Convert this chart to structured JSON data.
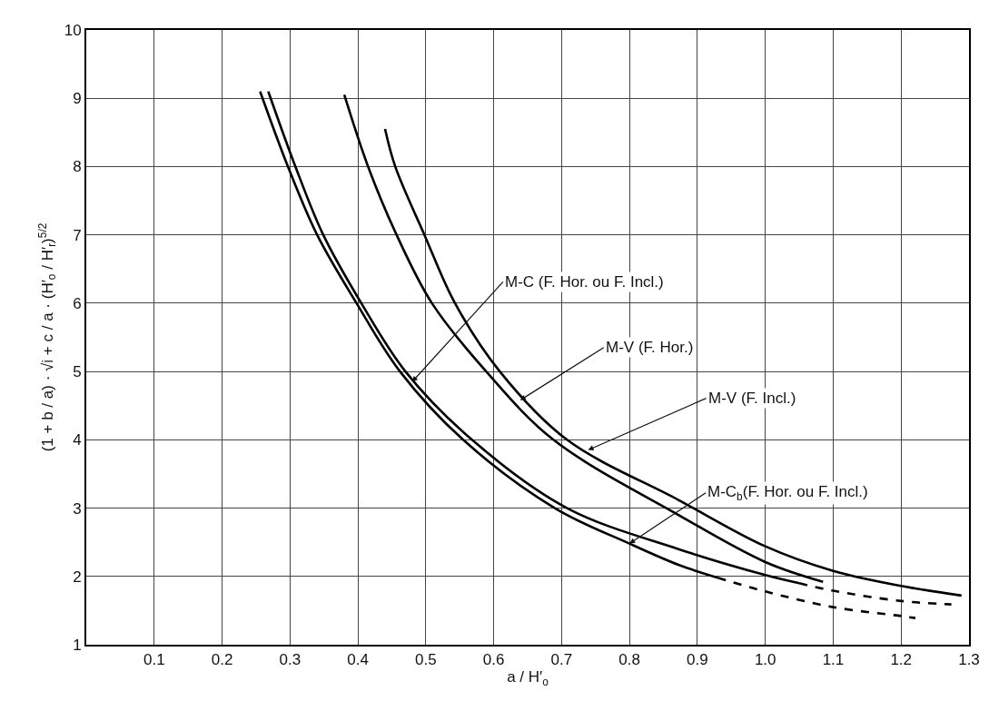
{
  "chart_data": {
    "type": "line",
    "xlabel": "a / H′$_{o}$",
    "ylabel": "(1 + b / a) · √i + c / a · (H′$_{o}$ / H′$_{r}$)$^{5/2}$",
    "xlim": [
      0,
      1.3
    ],
    "xticks": [
      0.1,
      0.2,
      0.3,
      0.4,
      0.5,
      0.6,
      0.7,
      0.8,
      0.9,
      {
        "value": 1,
        "label": "1.0"
      },
      1.1,
      1.2,
      1.3
    ],
    "ylim": [
      1,
      10
    ],
    "yticks": [
      1,
      2,
      3,
      4,
      5,
      6,
      7,
      8,
      9,
      10
    ],
    "grid": true,
    "marker": "none",
    "series": [
      {
        "color": "#000000",
        "line_style": "solid",
        "x": [
          0.256,
          0.297,
          0.34,
          0.398,
          0.462,
          0.555,
          0.69,
          0.8,
          0.872,
          0.93
        ],
        "values": [
          9.1,
          8,
          7,
          6,
          5,
          4,
          3,
          2.48,
          2.17,
          1.98
        ]
      },
      {
        "color": "#000000",
        "line_style": "dashed",
        "x": [
          0.93,
          1.0,
          1.1,
          1.2,
          1.221
        ],
        "values": [
          1.98,
          1.78,
          1.55,
          1.42,
          1.39
        ]
      },
      {
        "color": "#000000",
        "line_style": "solid",
        "x": [
          0.268,
          0.308,
          0.349,
          0.405,
          0.47,
          0.568,
          0.708,
          0.872,
          1.0,
          1.05
        ],
        "values": [
          9.1,
          8,
          7,
          6,
          5,
          4,
          3,
          2.4,
          2.02,
          1.9
        ]
      },
      {
        "color": "#000000",
        "line_style": "dashed",
        "x": [
          1.05,
          1.1,
          1.2,
          1.274
        ],
        "values": [
          1.9,
          1.79,
          1.64,
          1.59
        ]
      },
      {
        "color": "#000000",
        "line_style": "solid",
        "x": [
          0.38,
          0.415,
          0.457,
          0.509,
          0.589,
          0.688,
          0.872,
          1.0,
          1.085
        ],
        "values": [
          9.05,
          8,
          7,
          6,
          5,
          4,
          2.9,
          2.21,
          1.92
        ]
      },
      {
        "color": "#000000",
        "line_style": "solid",
        "x": [
          0.44,
          0.455,
          0.498,
          0.543,
          0.609,
          0.708,
          0.872,
          1.0,
          1.1,
          1.2,
          1.289
        ],
        "values": [
          8.55,
          8,
          7,
          6,
          5,
          4,
          3.12,
          2.44,
          2.08,
          1.86,
          1.72
        ]
      }
    ],
    "annotations": [
      {
        "text": "M-C (F. Hor. ou F. Incl.)",
        "x": 0.48,
        "y": 4.85
      },
      {
        "text": "M-V (F. Hor.)",
        "x": 0.639,
        "y": 4.58
      },
      {
        "text": "M-V (F. Incl.)",
        "x": 0.739,
        "y": 3.85
      },
      {
        "text": "M-C$_{b}$(F. Hor. ou F. Incl.)",
        "x": 0.8,
        "y": 2.48
      }
    ]
  }
}
